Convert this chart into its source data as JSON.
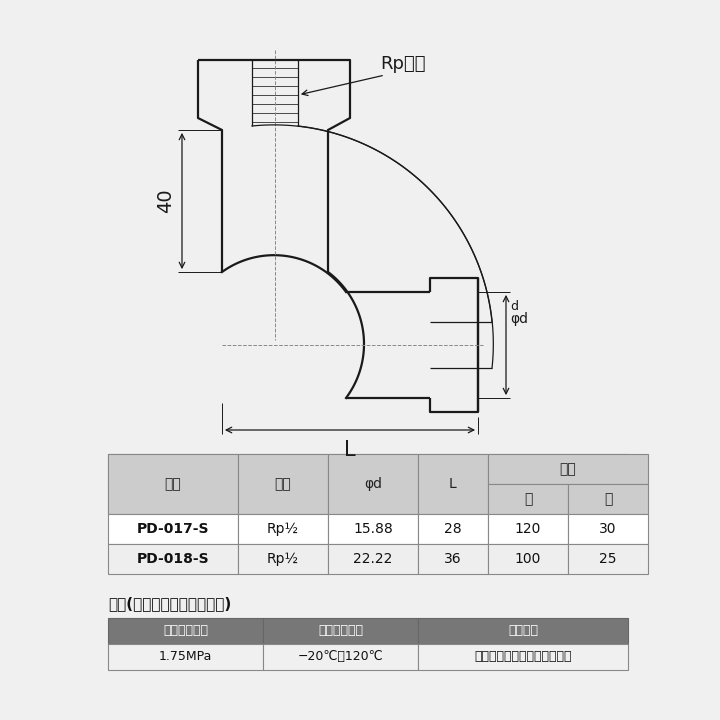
{
  "bg_color": "#f0f0f0",
  "line_color": "#1a1a1a",
  "dim_color": "#1a1a1a",
  "center_color": "#888888",
  "rp_label": "Rpねじ",
  "dim_40": "40",
  "dim_L": "L",
  "dim_phid": "φd",
  "dim_d": "d",
  "table1_headers": [
    "品番",
    "ねじ",
    "φd",
    "L",
    "入数"
  ],
  "table1_sub": [
    "大",
    "小"
  ],
  "table1_rows": [
    [
      "PD-017-S",
      "Rp½",
      "15.88",
      "28",
      "120",
      "30"
    ],
    [
      "PD-018-S",
      "Rp½",
      "22.22",
      "36",
      "100",
      "25"
    ]
  ],
  "header_bg": "#cccccc",
  "row0_bg": "#ffffff",
  "row1_bg": "#eeeeee",
  "spec_title": "仕様(水栓継手・銅管チーズ)",
  "spec_headers": [
    "最高許容圧力",
    "使用温度範囲",
    "使用流体"
  ],
  "spec_row": [
    "1.75MPa",
    "−20℃～120℃",
    "冷温水・不凍液・油・エアー"
  ],
  "spec_header_bg": "#777777",
  "spec_header_fg": "#ffffff",
  "spec_row_bg": "#f0f0f0"
}
